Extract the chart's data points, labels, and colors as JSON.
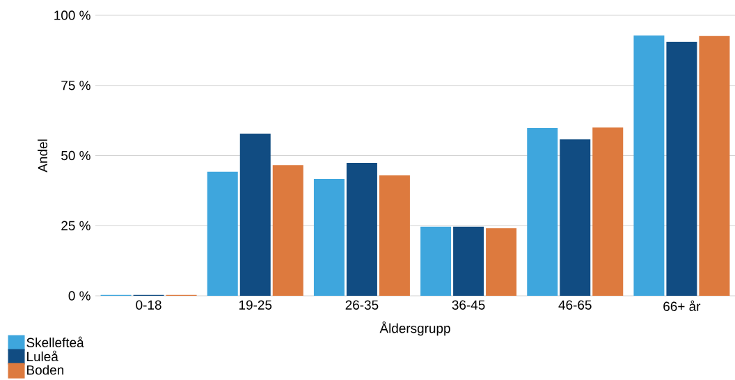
{
  "chart_data": {
    "type": "bar",
    "xlabel": "Åldersgrupp",
    "ylabel": "Andel",
    "categories": [
      "0-18",
      "19-25",
      "26-35",
      "36-45",
      "46-65",
      "66+ år"
    ],
    "series": [
      {
        "name": "Skellefteå",
        "color": "#3ea6dd",
        "values": [
          0.3,
          44.2,
          41.7,
          24.6,
          59.8,
          92.8
        ]
      },
      {
        "name": "Luleå",
        "color": "#114c82",
        "values": [
          0.3,
          57.8,
          47.4,
          24.6,
          55.8,
          90.6
        ]
      },
      {
        "name": "Boden",
        "color": "#dd7a3e",
        "values": [
          0.3,
          46.6,
          42.9,
          24.1,
          60.0,
          92.6
        ]
      }
    ],
    "ylim": [
      0,
      100
    ],
    "yticks": [
      {
        "value": 0,
        "label": "0 %"
      },
      {
        "value": 25,
        "label": "25 %"
      },
      {
        "value": 50,
        "label": "50 %"
      },
      {
        "value": 75,
        "label": "75 %"
      },
      {
        "value": 100,
        "label": "100 %"
      }
    ],
    "grid": "y",
    "legend": "bottom left"
  }
}
